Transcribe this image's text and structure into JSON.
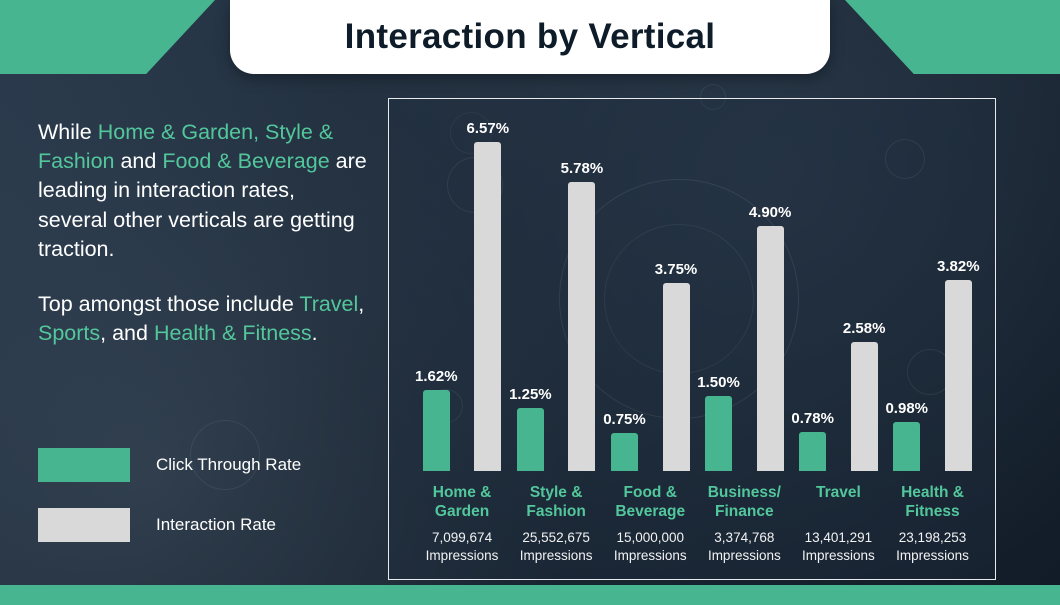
{
  "header": {
    "title": "Interaction by Vertical"
  },
  "intro": {
    "paragraphs": [
      {
        "segments": [
          {
            "text": "While ",
            "highlight": false
          },
          {
            "text": "Home & Garden,",
            "highlight": true
          },
          {
            "text": " ",
            "highlight": false
          },
          {
            "text": "Style & Fashion",
            "highlight": true
          },
          {
            "text": " and ",
            "highlight": false
          },
          {
            "text": "Food & Beverage",
            "highlight": true
          },
          {
            "text": " are leading in interaction rates, several other verticals are getting traction.",
            "highlight": false
          }
        ]
      },
      {
        "segments": [
          {
            "text": "Top amongst those include ",
            "highlight": false
          },
          {
            "text": "Travel",
            "highlight": true
          },
          {
            "text": ", ",
            "highlight": false
          },
          {
            "text": "Sports",
            "highlight": true
          },
          {
            "text": ", and ",
            "highlight": false
          },
          {
            "text": "Health & Fitness",
            "highlight": true
          },
          {
            "text": ".",
            "highlight": false
          }
        ]
      }
    ]
  },
  "legend": {
    "items": [
      {
        "label": "Click Through Rate",
        "color": "#47b690"
      },
      {
        "label": "Interaction Rate",
        "color": "#d9d9d9"
      }
    ]
  },
  "colors": {
    "accent_teal": "#47b690",
    "text_highlight": "#53c79c",
    "bar_gray": "#d9d9d9",
    "background_navy": "#1c2836",
    "title_text": "#0e1c2a"
  },
  "chart_data": {
    "type": "bar",
    "title": "Interaction by Vertical",
    "categories": [
      "Home & Garden",
      "Style & Fashion",
      "Food & Beverage",
      "Business/Finance",
      "Travel",
      "Health & Fitness"
    ],
    "category_lines": [
      [
        "Home &",
        "Garden"
      ],
      [
        "Style &",
        "Fashion"
      ],
      [
        "Food &",
        "Beverage"
      ],
      [
        "Business/",
        "Finance"
      ],
      [
        "Travel"
      ],
      [
        "Health &",
        "Fitness"
      ]
    ],
    "series": [
      {
        "name": "Click Through Rate",
        "values": [
          1.62,
          1.25,
          0.75,
          1.5,
          0.78,
          0.98
        ]
      },
      {
        "name": "Interaction Rate",
        "values": [
          6.57,
          5.78,
          3.75,
          4.9,
          2.58,
          3.82
        ]
      }
    ],
    "impressions": [
      "7,099,674",
      "25,552,675",
      "15,000,000",
      "3,374,768",
      "13,401,291",
      "23,198,253"
    ],
    "impressions_label": "Impressions",
    "value_suffix": "%",
    "ylim": [
      0,
      6.8
    ],
    "grid": false,
    "legend_position": "left"
  }
}
